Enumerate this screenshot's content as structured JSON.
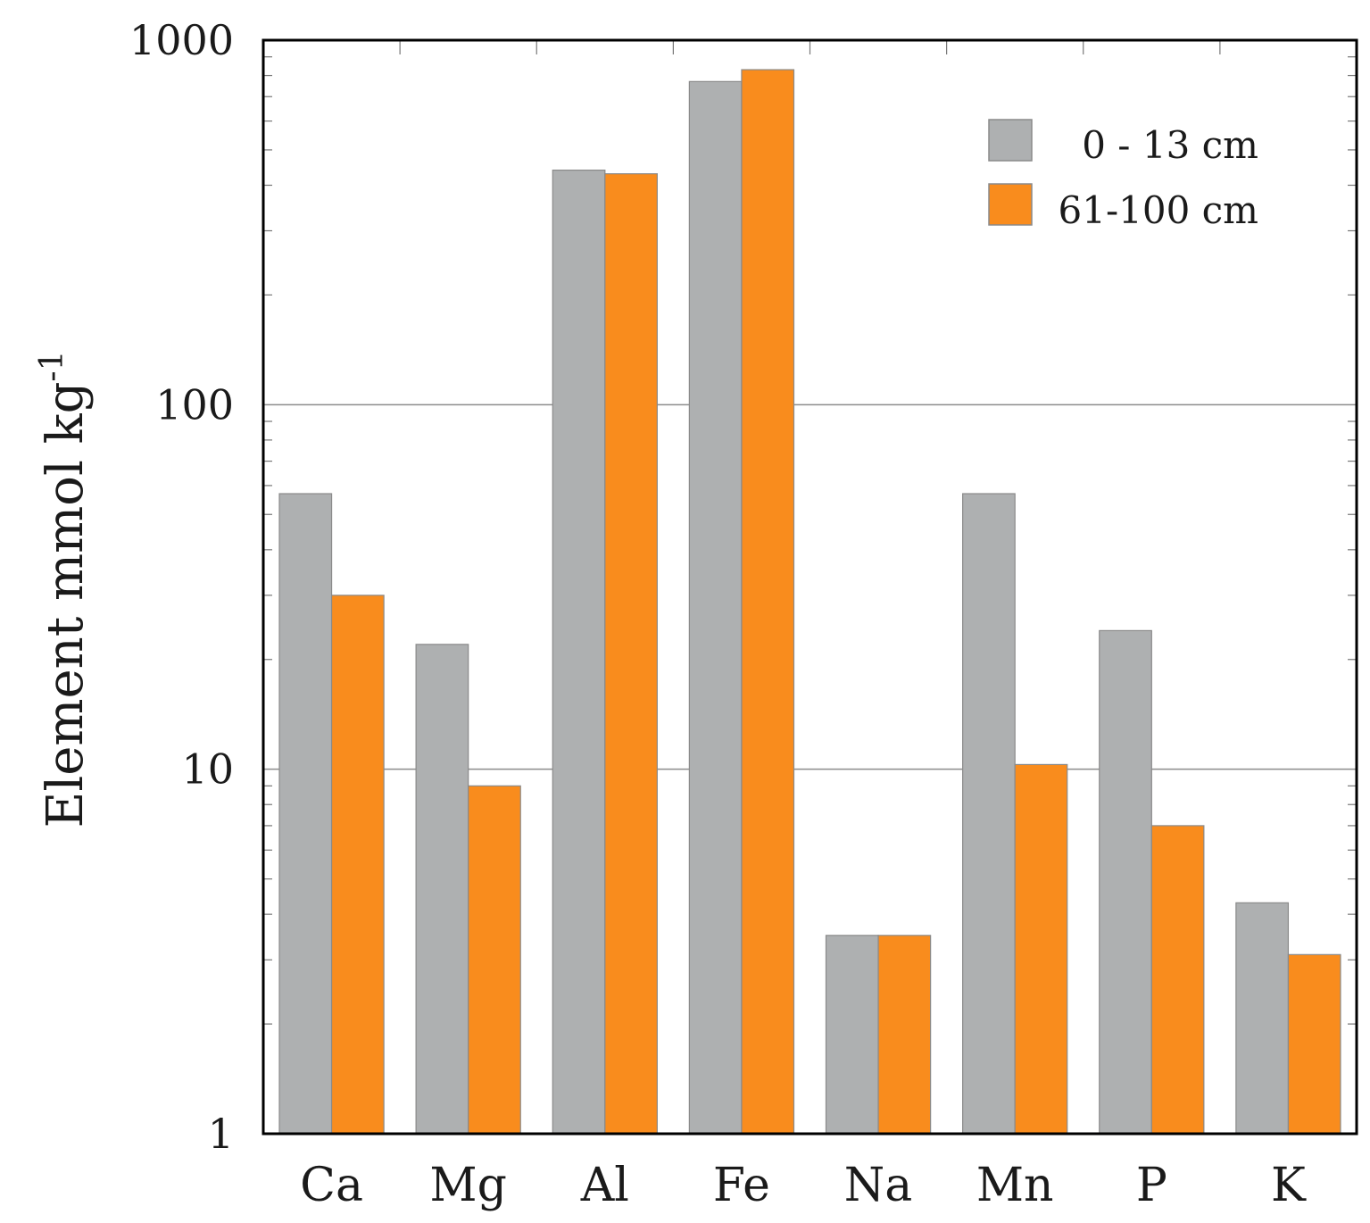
{
  "chart_data": {
    "type": "bar",
    "title": "",
    "xlabel": "",
    "ylabel": "Element mmol kg",
    "ylabel_superscript": "-1",
    "yscale": "log",
    "ylim": [
      1,
      1000
    ],
    "yticks": [
      1,
      10,
      100,
      1000
    ],
    "ytick_labels": [
      "1",
      "10",
      "100",
      "1000"
    ],
    "grid": true,
    "legend_position": "top-right",
    "categories": [
      "Ca",
      "Mg",
      "Al",
      "Fe",
      "Na",
      "Mn",
      "P",
      "K"
    ],
    "series": [
      {
        "name": "0 - 13 cm",
        "color": "#aeb0b1",
        "values": [
          57,
          22,
          440,
          770,
          3.5,
          57,
          24,
          4.3
        ]
      },
      {
        "name": "61-100 cm",
        "color": "#f98c1d",
        "values": [
          30,
          9,
          430,
          830,
          3.5,
          10.3,
          7,
          3.1
        ]
      }
    ]
  }
}
